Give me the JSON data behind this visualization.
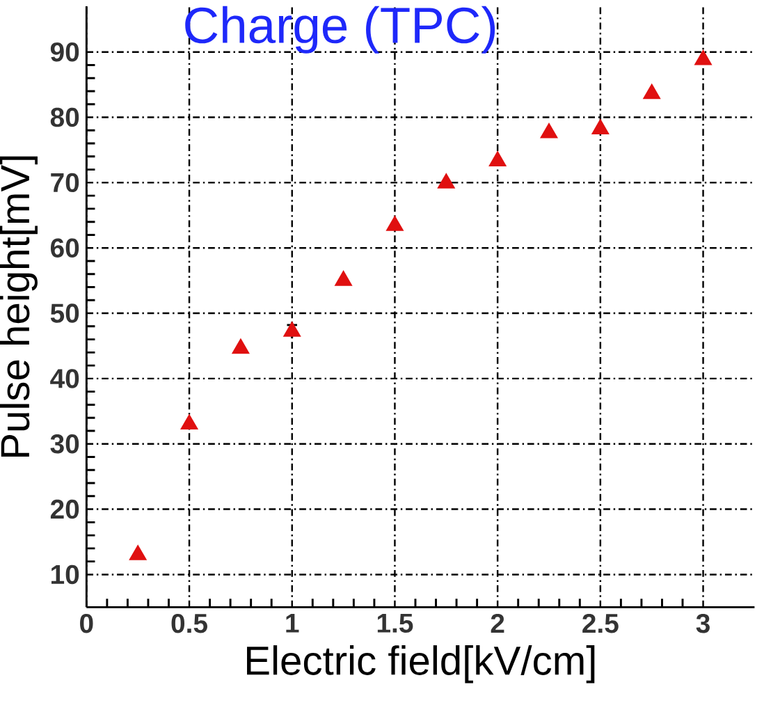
{
  "chart_data": {
    "type": "scatter",
    "title": "Charge (TPC)",
    "xlabel": "Electric field[kV/cm]",
    "ylabel": "Pulse height[mV]",
    "x": [
      0.25,
      0.5,
      0.75,
      1.0,
      1.25,
      1.5,
      1.75,
      2.0,
      2.25,
      2.5,
      2.75,
      3.0
    ],
    "values": [
      13.0,
      33.0,
      44.6,
      47.2,
      55.0,
      63.4,
      69.9,
      73.3,
      77.6,
      78.2,
      83.6,
      88.8
    ],
    "errors": [
      null,
      null,
      null,
      1.0,
      null,
      null,
      null,
      null,
      null,
      null,
      null,
      null
    ],
    "color": "#e01010",
    "marker": "triangle",
    "grid": true,
    "xlim": [
      0,
      3.25
    ],
    "ylim": [
      5,
      97
    ],
    "xticks": [
      0,
      0.5,
      1,
      1.5,
      2,
      2.5,
      3
    ],
    "yticks": [
      10,
      20,
      30,
      40,
      50,
      60,
      70,
      80,
      90
    ]
  }
}
